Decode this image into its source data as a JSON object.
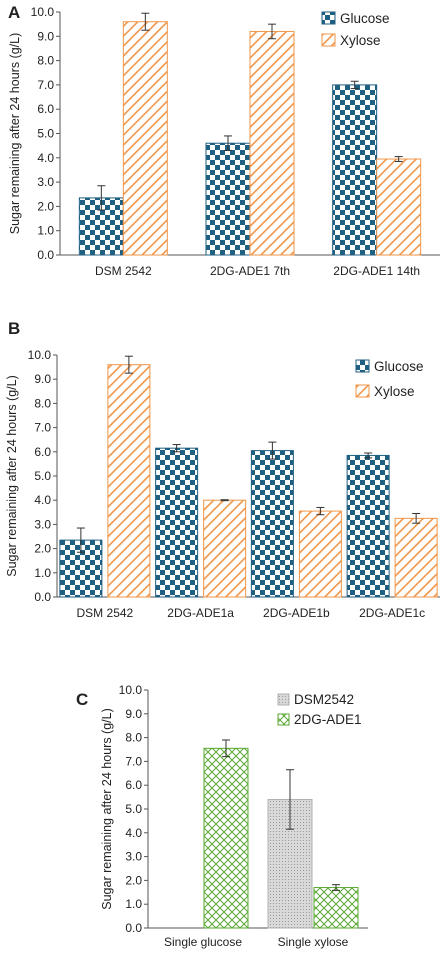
{
  "colors": {
    "glucose": "#1f5f82",
    "xylose": "#f0964a",
    "dsm2542_c": "#c8c8c8",
    "ade1_c": "#5aa832"
  },
  "chart_data": [
    {
      "panel": "A",
      "type": "bar",
      "ylabel": "Sugar remaining after 24 hours (g/L)",
      "ylim": [
        0,
        10
      ],
      "ytick_step": 1,
      "categories": [
        "DSM 2542",
        "2DG-ADE1 7th",
        "2DG-ADE1 14th"
      ],
      "legend_position": "top-right",
      "series": [
        {
          "name": "Glucose",
          "pattern": "checker",
          "values": [
            2.35,
            4.6,
            7.0
          ],
          "errors": [
            0.5,
            0.3,
            0.15
          ]
        },
        {
          "name": "Xylose",
          "pattern": "hatch",
          "values": [
            9.6,
            9.2,
            3.95
          ],
          "errors": [
            0.35,
            0.3,
            0.1
          ]
        }
      ]
    },
    {
      "panel": "B",
      "type": "bar",
      "ylabel": "Sugar remaining after 24 hours (g/L)",
      "ylim": [
        0,
        10
      ],
      "ytick_step": 1,
      "categories": [
        "DSM 2542",
        "2DG-ADE1a",
        "2DG-ADE1b",
        "2DG-ADE1c"
      ],
      "legend_position": "top-right",
      "series": [
        {
          "name": "Glucose",
          "pattern": "checker",
          "values": [
            2.35,
            6.15,
            6.05,
            5.85
          ],
          "errors": [
            0.5,
            0.15,
            0.35,
            0.1
          ]
        },
        {
          "name": "Xylose",
          "pattern": "hatch",
          "values": [
            9.6,
            4.0,
            3.55,
            3.25
          ],
          "errors": [
            0.35,
            0.02,
            0.15,
            0.2
          ]
        }
      ]
    },
    {
      "panel": "C",
      "type": "bar",
      "ylabel": "Sugar remaining after 24 hours (g/L)",
      "ylim": [
        0,
        10
      ],
      "ytick_step": 1,
      "categories": [
        "Single glucose",
        "Single xylose"
      ],
      "legend_position": "top-right",
      "series": [
        {
          "name": "DSM2542",
          "pattern": "dots",
          "values": [
            0,
            5.4
          ],
          "errors": [
            0,
            1.25
          ]
        },
        {
          "name": "2DG-ADE1",
          "pattern": "crosshatch",
          "values": [
            7.55,
            1.7
          ],
          "errors": [
            0.35,
            0.12
          ]
        }
      ]
    }
  ]
}
